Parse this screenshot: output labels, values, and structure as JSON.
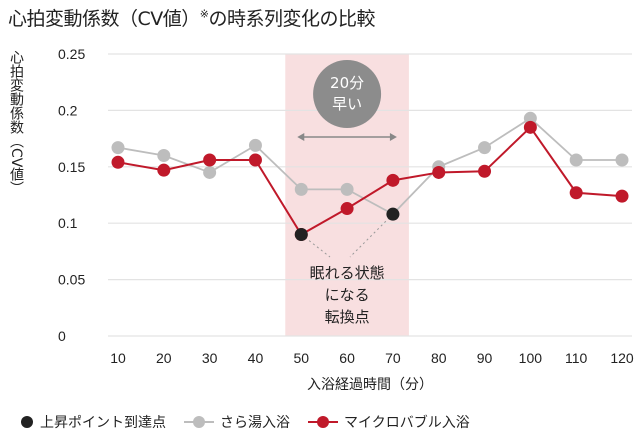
{
  "title": {
    "main": "心拍変動係数（CV値）",
    "mark": "※",
    "rest": "の時系列変化の比較"
  },
  "chart_data": {
    "type": "line",
    "title": "心拍変動係数（CV値）※の時系列変化の比較",
    "xlabel": "入浴経過時間（分）",
    "ylabel": "心拍変動係数（CV値）",
    "x": [
      10,
      20,
      30,
      40,
      50,
      60,
      70,
      80,
      90,
      100,
      110,
      120
    ],
    "ylim": [
      0,
      0.25
    ],
    "yticks": [
      "0",
      "0.05",
      "0.1",
      "0.15",
      "0.2",
      "0.25"
    ],
    "grid": true,
    "legend_position": "bottom",
    "series": [
      {
        "name": "さら湯入浴",
        "color": "#bdbdbd",
        "values": [
          0.167,
          0.16,
          0.145,
          0.169,
          0.13,
          0.13,
          0.108,
          0.15,
          0.167,
          0.193,
          0.156,
          0.156
        ]
      },
      {
        "name": "マイクロバブル入浴",
        "color": "#c0192a",
        "values": [
          0.154,
          0.147,
          0.156,
          0.156,
          0.09,
          0.113,
          0.138,
          0.145,
          0.146,
          0.185,
          0.127,
          0.124
        ]
      },
      {
        "name": "上昇ポイント到達点",
        "color": "#222222",
        "points": [
          {
            "x": 50,
            "y": 0.09
          },
          {
            "x": 70,
            "y": 0.108
          }
        ]
      }
    ],
    "highlight": {
      "x_range": [
        50,
        70
      ],
      "color": "#f8dfe0"
    },
    "annotations": {
      "badge": [
        "20分",
        "早い"
      ],
      "note": [
        "眠れる状態",
        "になる",
        "転換点"
      ]
    }
  }
}
